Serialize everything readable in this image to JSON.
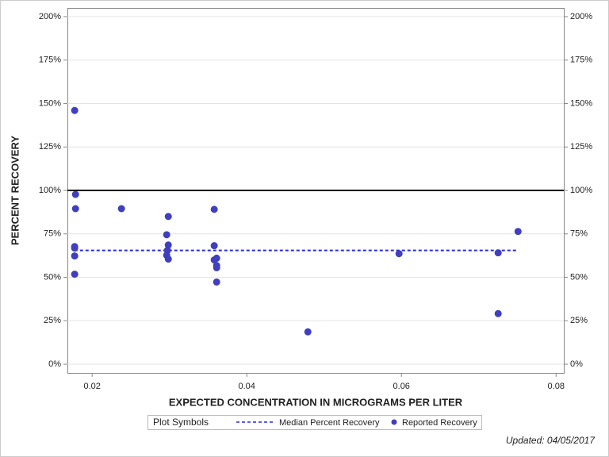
{
  "chart_data": {
    "type": "scatter",
    "x_label": "EXPECTED CONCENTRATION IN MICROGRAMS PER LITER",
    "y_label": "PERCENT RECOVERY",
    "xlim": [
      0.0168,
      0.081
    ],
    "xticks": [
      0.02,
      0.04,
      0.06,
      0.08
    ],
    "ylim": [
      -5,
      205
    ],
    "yticks": [
      {
        "value": 0,
        "label": "0%"
      },
      {
        "value": 25,
        "label": "25%"
      },
      {
        "value": 50,
        "label": "50%"
      },
      {
        "value": 75,
        "label": "75%"
      },
      {
        "value": 100,
        "label": "100%"
      },
      {
        "value": 125,
        "label": "125%"
      },
      {
        "value": 150,
        "label": "150%"
      },
      {
        "value": 175,
        "label": "175%"
      },
      {
        "value": 200,
        "label": "200%"
      }
    ],
    "grid": true,
    "reference_line": 100,
    "median_line": {
      "name": "Median Percent Recovery",
      "color": "#2a2ae0",
      "value": 65.5,
      "x": [
        0.0177,
        0.0751
      ]
    },
    "series": [
      {
        "name": "Reported Recovery",
        "color": "#3f3fbf",
        "x": [
          0.01774,
          0.01785,
          0.01785,
          0.01774,
          0.01774,
          0.01774,
          0.01774,
          0.02379,
          0.02985,
          0.02964,
          0.02985,
          0.02974,
          0.02964,
          0.02985,
          0.03579,
          0.03579,
          0.03579,
          0.0361,
          0.0361,
          0.0361,
          0.0361,
          0.0479,
          0.05969,
          0.07251,
          0.07251,
          0.07508
        ],
        "values": [
          146,
          97.7,
          89.5,
          67.7,
          66.8,
          62.3,
          51.8,
          89.5,
          85,
          74.5,
          68.6,
          65.5,
          62.7,
          60.5,
          89.1,
          68.2,
          60,
          61,
          56.8,
          55.5,
          47.3,
          18.6,
          63.6,
          64.1,
          29.1,
          76.4
        ]
      }
    ],
    "legend_title": "Plot Symbols",
    "footnote": "Updated: 04/05/2017"
  }
}
